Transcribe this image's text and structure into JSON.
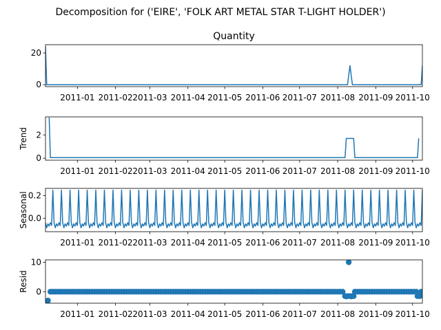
{
  "figure": {
    "suptitle": "Decomposition for ('EIRE', 'FOLK ART METAL STAR T-LIGHT HOLDER')",
    "line_color": "#1f77b4"
  },
  "x_ticks": [
    "2011-01",
    "2011-02",
    "2011-03",
    "2011-04",
    "2011-05",
    "2011-06",
    "2011-07",
    "2011-08",
    "2011-09",
    "2011-10"
  ],
  "x_range": [
    "2010-12-06",
    "2011-10-09"
  ],
  "chart_data": [
    {
      "type": "line",
      "title": "Quantity",
      "ylabel": "",
      "ylim": [
        -1.2,
        25.2
      ],
      "yticks": [
        0,
        20
      ],
      "grid": false,
      "series": [
        {
          "points": [
            [
              "2010-12-06",
              24
            ],
            [
              "2010-12-07",
              0
            ],
            [
              "2011-08-09",
              0
            ],
            [
              "2011-08-11",
              12
            ],
            [
              "2011-08-13",
              0
            ],
            [
              "2011-10-08",
              0
            ],
            [
              "2011-10-09",
              12
            ]
          ]
        }
      ]
    },
    {
      "type": "line",
      "title": "",
      "ylabel": "Trend",
      "ylim": [
        -0.17,
        3.55
      ],
      "yticks": [
        0,
        2
      ],
      "grid": false,
      "series": [
        {
          "points": [
            [
              "2010-12-09",
              3.5
            ],
            [
              "2010-12-10",
              0.05
            ],
            [
              "2011-08-07",
              0.05
            ],
            [
              "2011-08-08",
              1.7
            ],
            [
              "2011-08-14",
              1.7
            ],
            [
              "2011-08-15",
              0.05
            ],
            [
              "2011-10-05",
              0.05
            ],
            [
              "2011-10-06",
              1.7
            ]
          ]
        }
      ]
    },
    {
      "type": "line",
      "title": "",
      "ylabel": "Seasonal",
      "ylim": [
        -0.12,
        0.265
      ],
      "yticks": [
        0.0,
        0.2
      ],
      "tick_decimals": 1,
      "grid": false,
      "periodic": {
        "start": "2010-12-06",
        "end": "2011-10-09",
        "period_days": 7,
        "pattern": [
          -0.04,
          -0.085,
          -0.05,
          -0.07,
          -0.04,
          -0.065,
          0.25
        ]
      }
    },
    {
      "type": "scatter",
      "title": "",
      "ylabel": "Resid",
      "ylim": [
        -3.9,
        10.8
      ],
      "yticks": [
        0,
        10
      ],
      "grid": false,
      "series": [
        {
          "points_sparse": [
            [
              "2010-12-08",
              -3
            ],
            [
              "2011-08-07",
              -1.5
            ],
            [
              "2011-08-08",
              -1.6
            ],
            [
              "2011-08-09",
              -1.5
            ],
            [
              "2011-08-10",
              10
            ],
            [
              "2011-08-11",
              -1.5
            ],
            [
              "2011-08-12",
              -1.6
            ],
            [
              "2011-08-13",
              -1.5
            ],
            [
              "2011-08-14",
              -1.5
            ],
            [
              "2011-10-05",
              -1.5
            ],
            [
              "2011-10-06",
              -1.5
            ],
            [
              "2011-10-07",
              -1.5
            ]
          ],
          "baseline": {
            "start": "2010-12-10",
            "end": "2011-10-08",
            "step_days": 2,
            "value": 0
          }
        }
      ]
    }
  ]
}
